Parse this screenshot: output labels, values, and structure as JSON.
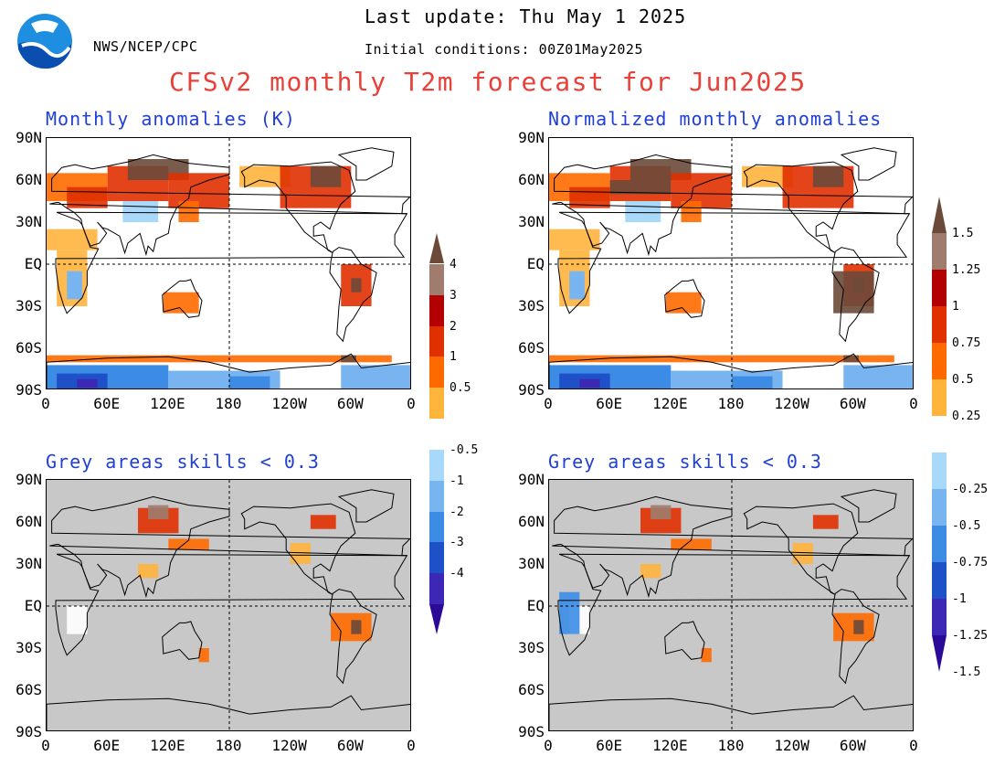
{
  "header": {
    "last_update": "Last update: Thu May 1 2025",
    "initial_conditions": "Initial conditions: 00Z01May2025",
    "agency": "NWS/NCEP/CPC",
    "title": "CFSv2 monthly T2m forecast for Jun2025"
  },
  "colors": {
    "title": "#e8413a",
    "panel_title": "#1f3fd6",
    "grey": "#c8c8c8"
  },
  "panels": [
    {
      "title": "Monthly anomalies (K)"
    },
    {
      "title": "Normalized monthly anomalies"
    },
    {
      "title": "Grey areas skills < 0.3"
    },
    {
      "title": "Grey areas skills < 0.3"
    }
  ],
  "axes": {
    "lat_labels": [
      "90N",
      "60N",
      "30N",
      "EQ",
      "30S",
      "60S",
      "90S"
    ],
    "lon_labels": [
      "0",
      "60E",
      "120E",
      "180",
      "120W",
      "60W",
      "0"
    ]
  },
  "colorbar_left": {
    "labels": [
      "4",
      "3",
      "2",
      "1",
      "0.5",
      "-0.5",
      "-1",
      "-2",
      "-3",
      "-4"
    ],
    "colors": [
      "#6b4a3a",
      "#a07c6e",
      "#b30000",
      "#e03000",
      "#ff6a00",
      "#ffb43c",
      "#ffffff",
      "#a8d8fa",
      "#78b4f0",
      "#3c8ce6",
      "#1e50c8",
      "#3c28b4",
      "#2a0a96"
    ]
  },
  "colorbar_right": {
    "labels": [
      "1.5",
      "1.25",
      "1",
      "0.75",
      "0.5",
      "0.25",
      "-0.25",
      "-0.5",
      "-0.75",
      "-1",
      "-1.25",
      "-1.5"
    ]
  }
}
